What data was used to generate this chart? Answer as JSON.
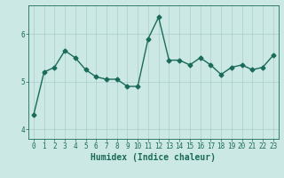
{
  "x": [
    0,
    1,
    2,
    3,
    4,
    5,
    6,
    7,
    8,
    9,
    10,
    11,
    12,
    13,
    14,
    15,
    16,
    17,
    18,
    19,
    20,
    21,
    22,
    23
  ],
  "y": [
    4.3,
    5.2,
    5.3,
    5.65,
    5.5,
    5.25,
    5.1,
    5.05,
    5.05,
    4.9,
    4.9,
    5.9,
    6.35,
    5.45,
    5.45,
    5.35,
    5.5,
    5.35,
    5.15,
    5.3,
    5.35,
    5.25,
    5.3,
    5.55
  ],
  "line_color": "#1a6b5a",
  "marker": "D",
  "markersize": 2.5,
  "linewidth": 1.0,
  "xlabel": "Humidex (Indice chaleur)",
  "ylim": [
    3.8,
    6.6
  ],
  "yticks": [
    4,
    5,
    6
  ],
  "xticks": [
    0,
    1,
    2,
    3,
    4,
    5,
    6,
    7,
    8,
    9,
    10,
    11,
    12,
    13,
    14,
    15,
    16,
    17,
    18,
    19,
    20,
    21,
    22,
    23
  ],
  "bg_color": "#cce8e4",
  "grid_color": "#aacfcc",
  "tick_color": "#1a6b5a",
  "label_color": "#1a6b5a",
  "xlabel_fontsize": 7,
  "tick_fontsize": 5.5
}
